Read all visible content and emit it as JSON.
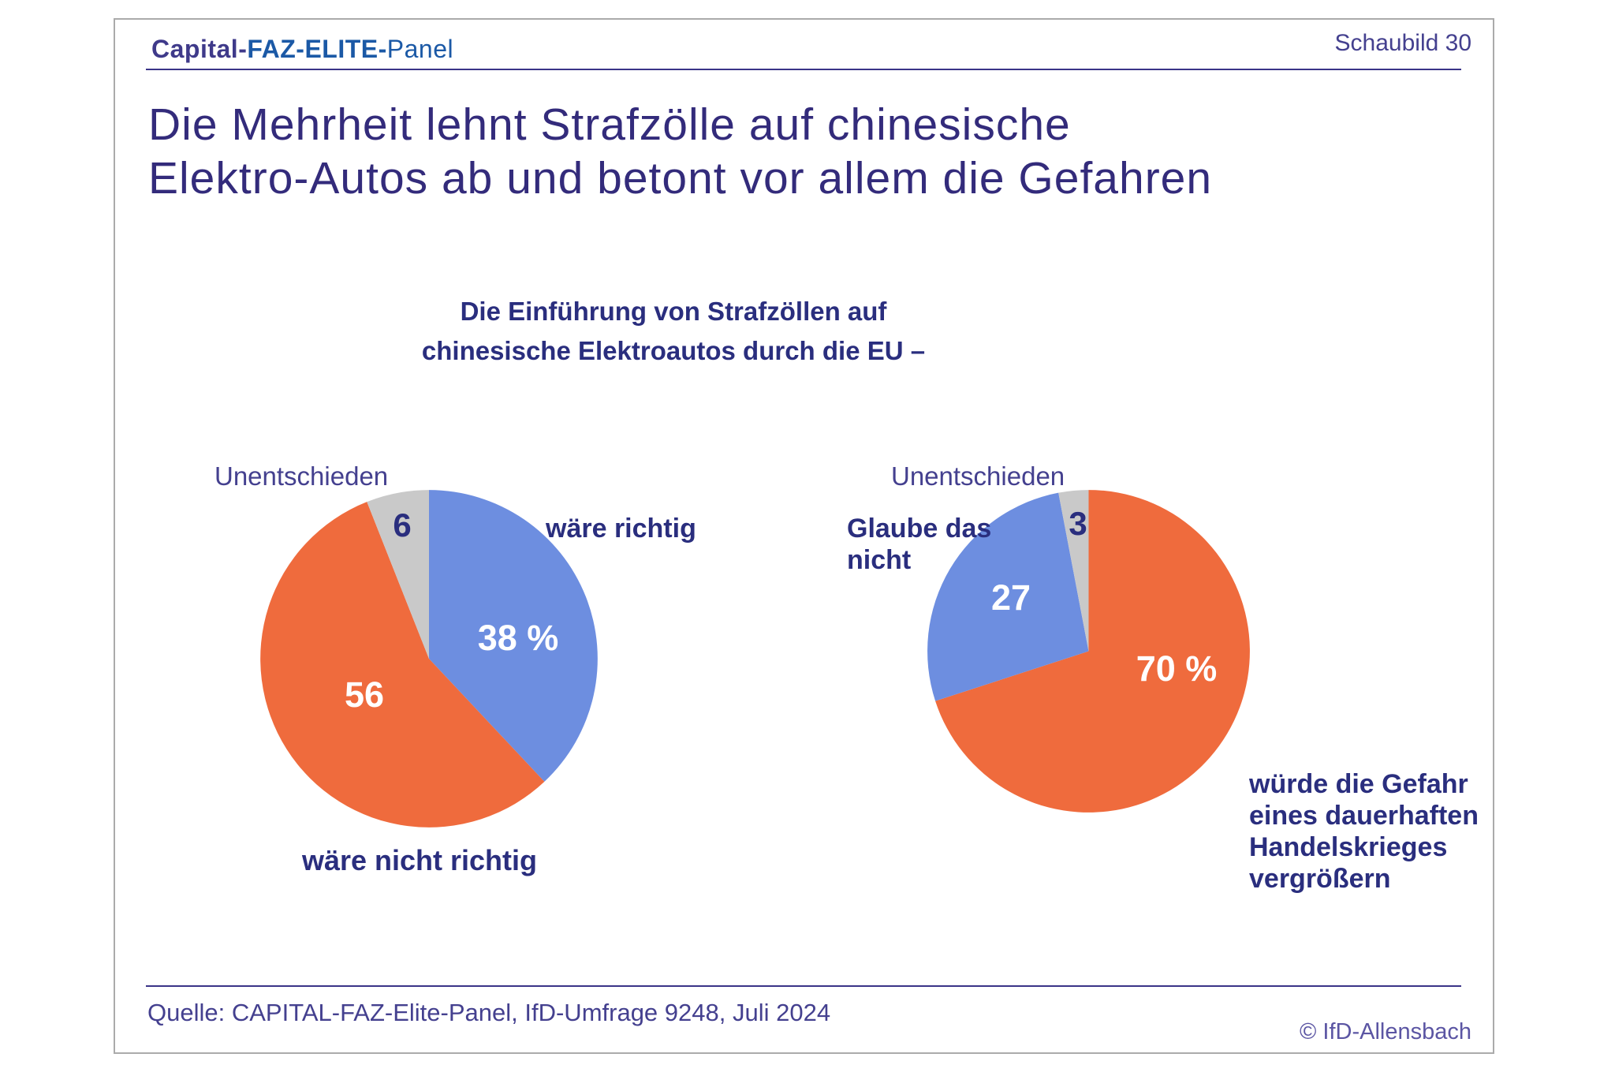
{
  "header": {
    "brand": {
      "part1": "Capital-",
      "part2": "FAZ-ELITE-",
      "part3": "Panel"
    },
    "slide_number": "Schaubild 30"
  },
  "title": {
    "line1": "Die Mehrheit lehnt Strafzölle auf chinesische",
    "line2": "Elektro-Autos ab und betont vor allem die Gefahren"
  },
  "subtitle": {
    "line1": "Die Einführung von Strafzöllen auf",
    "line2": "chinesische Elektroautos durch die EU –"
  },
  "footer": {
    "source": "Quelle: CAPITAL-FAZ-Elite-Panel, IfD-Umfrage 9248, Juli 2024",
    "copyright": "© IfD-Allensbach"
  },
  "colors": {
    "accent_orange": "#EF6B3D",
    "accent_blue": "#6D8EE0",
    "neutral_gray": "#C9C9C9",
    "label_navy": "#2A2E7E",
    "heading_purple": "#332B7B",
    "light_purple": "#44408F",
    "brand_purple": "#3F3A8A",
    "brand_blue": "#1B59A6"
  },
  "chart_data": [
    {
      "type": "pie",
      "title": "Die Einführung von Strafzöllen auf chinesische Elektroautos durch die EU –",
      "unit": "%",
      "start_angle_deg": 0,
      "direction": "clockwise",
      "legend_position": "callouts",
      "slices": [
        {
          "label": "wäre richtig",
          "value": 38,
          "display_value": "38 %",
          "color": "#6D8EE0"
        },
        {
          "label": "wäre nicht richtig",
          "value": 56,
          "display_value": "56",
          "color": "#EF6B3D"
        },
        {
          "label": "Unentschieden",
          "value": 6,
          "display_value": "6",
          "color": "#C9C9C9"
        }
      ],
      "callouts": {
        "undecided": "Unentschieden",
        "blue": "wäre richtig",
        "orange": "wäre nicht richtig"
      }
    },
    {
      "type": "pie",
      "title": "Die Einführung von Strafzöllen auf chinesische Elektroautos durch die EU –",
      "unit": "%",
      "start_angle_deg": 0,
      "direction": "clockwise",
      "legend_position": "callouts",
      "slices": [
        {
          "label": "würde die Gefahr eines dauerhaften Handelskrieges vergrößern",
          "value": 70,
          "display_value": "70 %",
          "color": "#EF6B3D"
        },
        {
          "label": "Glaube das nicht",
          "value": 27,
          "display_value": "27",
          "color": "#6D8EE0"
        },
        {
          "label": "Unentschieden",
          "value": 3,
          "display_value": "3",
          "color": "#C9C9C9"
        }
      ],
      "callouts": {
        "undecided": "Unentschieden",
        "blue": "Glaube das\nnicht",
        "orange": "würde die Gefahr\neines dauerhaften\nHandelskrieges\nvergrößern"
      }
    }
  ]
}
